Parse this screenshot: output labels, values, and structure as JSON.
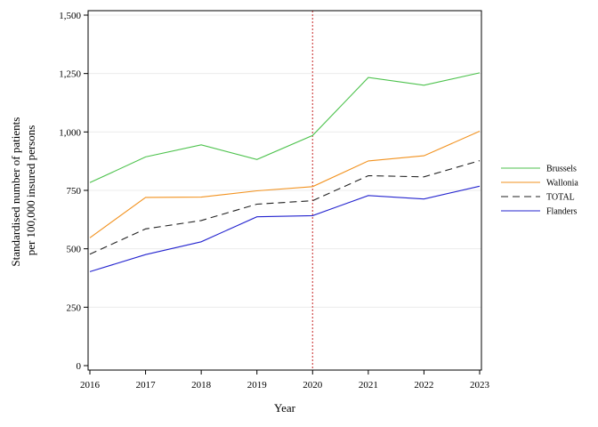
{
  "chart_data": {
    "type": "line",
    "xlabel": "Year",
    "ylabel_lines": [
      "Standardised number of patients",
      "per 100,000 insured persons"
    ],
    "x": [
      2016,
      2017,
      2018,
      2019,
      2020,
      2021,
      2022,
      2023
    ],
    "ylim": [
      0,
      1500
    ],
    "yticks": [
      0,
      250,
      500,
      750,
      1000,
      1250,
      1500
    ],
    "ytick_labels": [
      "0",
      "250",
      "500",
      "750",
      "1,000",
      "1,250",
      "1,500"
    ],
    "grid": "horizontal",
    "reference_line": {
      "x": 2020,
      "color": "#d04a4a",
      "style": "dotted"
    },
    "legend_position": "right",
    "series": [
      {
        "name": "Brussels",
        "color": "#4cc24c",
        "dash": "",
        "values": [
          783,
          893,
          945,
          882,
          985,
          1233,
          1200,
          1253
        ]
      },
      {
        "name": "Wallonia",
        "color": "#f2921f",
        "dash": "",
        "values": [
          547,
          720,
          721,
          748,
          766,
          876,
          898,
          1003
        ]
      },
      {
        "name": "TOTAL",
        "color": "#222222",
        "dash": "8,5",
        "values": [
          477,
          585,
          621,
          691,
          706,
          813,
          808,
          877
        ]
      },
      {
        "name": "Flanders",
        "color": "#2424cf",
        "dash": "",
        "values": [
          402,
          475,
          530,
          637,
          642,
          728,
          713,
          768
        ]
      }
    ]
  }
}
